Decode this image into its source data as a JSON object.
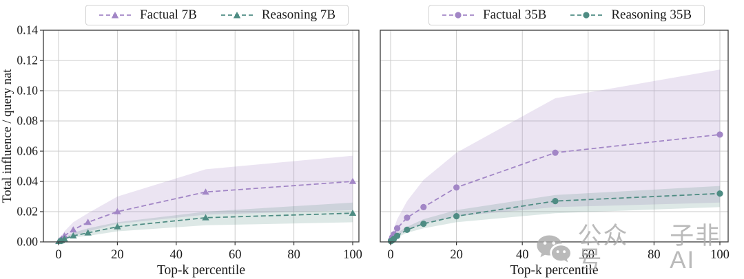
{
  "figure": {
    "xlabel": "Top-k percentile",
    "ylabel": "Total influence / query nat",
    "x_ticks": [
      0,
      20,
      40,
      60,
      80,
      100
    ],
    "y_ticks": [
      0,
      0.02,
      0.04,
      0.06,
      0.08,
      0.1,
      0.12,
      0.14
    ],
    "y_tick_labels": [
      "0.00",
      "0.02",
      "0.04",
      "0.06",
      "0.08",
      "0.10",
      "0.12",
      "0.14"
    ],
    "grid": true,
    "background": "#ffffff"
  },
  "colors": {
    "grid": "#cbcbcb",
    "spine": "#3a3a3a",
    "text": "#1a1a1a",
    "legend_border": "#d2d2d2",
    "watermark": "#ababab"
  },
  "chart_data": [
    {
      "type": "line",
      "panel": "left",
      "title": "",
      "xlabel": "Top-k percentile",
      "ylabel": "Total influence / query nat",
      "xlim": [
        0,
        100
      ],
      "ylim": [
        0,
        0.14
      ],
      "grid": true,
      "legend_position": "top-center-outside",
      "x": [
        0.1,
        0.5,
        1,
        2,
        5,
        10,
        20,
        50,
        100
      ],
      "series": [
        {
          "name": "Factual 7B",
          "color": "#a286c6",
          "marker": "triangle",
          "linestyle": "dashed",
          "band_fill": "rgba(164,133,198,0.22)",
          "values": [
            0.0005,
            0.001,
            0.002,
            0.004,
            0.008,
            0.013,
            0.02,
            0.033,
            0.04
          ],
          "band_upper": [
            0.001,
            0.002,
            0.004,
            0.007,
            0.013,
            0.019,
            0.03,
            0.048,
            0.057
          ],
          "band_lower": [
            0.0003,
            0.0006,
            0.001,
            0.002,
            0.004,
            0.007,
            0.012,
            0.018,
            0.021
          ]
        },
        {
          "name": "Reasoning 7B",
          "color": "#4e8c83",
          "marker": "triangle",
          "linestyle": "dashed",
          "band_fill": "rgba(84,139,129,0.20)",
          "values": [
            0.0003,
            0.0006,
            0.001,
            0.002,
            0.004,
            0.006,
            0.01,
            0.016,
            0.019
          ],
          "band_upper": [
            0.0005,
            0.001,
            0.002,
            0.003,
            0.006,
            0.009,
            0.013,
            0.02,
            0.026
          ],
          "band_lower": [
            0.0002,
            0.0004,
            0.0007,
            0.0015,
            0.003,
            0.004,
            0.007,
            0.011,
            0.013
          ]
        }
      ]
    },
    {
      "type": "line",
      "panel": "right",
      "title": "",
      "xlabel": "Top-k percentile",
      "ylabel": "",
      "xlim": [
        0,
        100
      ],
      "ylim": [
        0,
        0.14
      ],
      "grid": true,
      "legend_position": "top-center-outside",
      "x": [
        0.1,
        0.5,
        1,
        2,
        5,
        10,
        20,
        50,
        100
      ],
      "series": [
        {
          "name": "Factual 35B",
          "color": "#a286c6",
          "marker": "circle",
          "linestyle": "dashed",
          "band_fill": "rgba(164,133,198,0.22)",
          "values": [
            0.001,
            0.003,
            0.005,
            0.009,
            0.016,
            0.023,
            0.036,
            0.059,
            0.071
          ],
          "band_upper": [
            0.002,
            0.005,
            0.009,
            0.015,
            0.027,
            0.041,
            0.059,
            0.095,
            0.114
          ],
          "band_lower": [
            0.0005,
            0.001,
            0.002,
            0.004,
            0.008,
            0.012,
            0.017,
            0.023,
            0.026
          ]
        },
        {
          "name": "Reasoning 35B",
          "color": "#4e8c83",
          "marker": "circle",
          "linestyle": "dashed",
          "band_fill": "rgba(84,139,129,0.20)",
          "values": [
            0.0005,
            0.001,
            0.002,
            0.004,
            0.008,
            0.012,
            0.017,
            0.027,
            0.032
          ],
          "band_upper": [
            0.001,
            0.002,
            0.003,
            0.006,
            0.01,
            0.015,
            0.021,
            0.031,
            0.037
          ],
          "band_lower": [
            0.0003,
            0.0007,
            0.0015,
            0.003,
            0.006,
            0.009,
            0.013,
            0.019,
            0.023
          ]
        }
      ]
    }
  ],
  "watermark": {
    "icon": "wechat-icon",
    "text1": "公众号",
    "text2": "子非AI"
  }
}
